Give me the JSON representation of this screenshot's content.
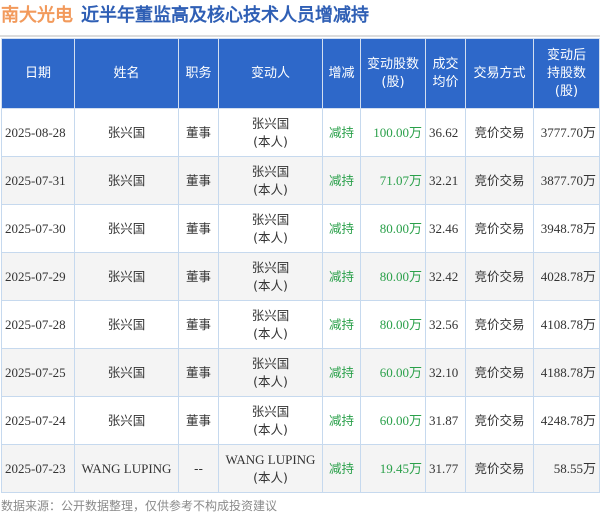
{
  "header": {
    "company": "南大光电",
    "subtitle": "近半年董监高及核心技术人员增减持"
  },
  "table": {
    "columns": [
      {
        "label_lines": [
          "日期"
        ]
      },
      {
        "label_lines": [
          "姓名"
        ]
      },
      {
        "label_lines": [
          "职务"
        ]
      },
      {
        "label_lines": [
          "变动人"
        ]
      },
      {
        "label_lines": [
          "增减"
        ]
      },
      {
        "label_lines": [
          "变动股数",
          "(股)"
        ]
      },
      {
        "label_lines": [
          "成交",
          "均价"
        ]
      },
      {
        "label_lines": [
          "交易方式"
        ]
      },
      {
        "label_lines": [
          "变动后",
          "持股数",
          "(股)"
        ]
      }
    ],
    "rows": [
      {
        "date": "2025-08-28",
        "name": "张兴国",
        "position": "董事",
        "changer": "张兴国",
        "relation": "(本人)",
        "direction": "减持",
        "shares_changed": "100.00万",
        "avg_price": "36.62",
        "method": "竞价交易",
        "shares_after": "3777.70万"
      },
      {
        "date": "2025-07-31",
        "name": "张兴国",
        "position": "董事",
        "changer": "张兴国",
        "relation": "(本人)",
        "direction": "减持",
        "shares_changed": "71.07万",
        "avg_price": "32.21",
        "method": "竞价交易",
        "shares_after": "3877.70万"
      },
      {
        "date": "2025-07-30",
        "name": "张兴国",
        "position": "董事",
        "changer": "张兴国",
        "relation": "(本人)",
        "direction": "减持",
        "shares_changed": "80.00万",
        "avg_price": "32.46",
        "method": "竞价交易",
        "shares_after": "3948.78万"
      },
      {
        "date": "2025-07-29",
        "name": "张兴国",
        "position": "董事",
        "changer": "张兴国",
        "relation": "(本人)",
        "direction": "减持",
        "shares_changed": "80.00万",
        "avg_price": "32.42",
        "method": "竞价交易",
        "shares_after": "4028.78万"
      },
      {
        "date": "2025-07-28",
        "name": "张兴国",
        "position": "董事",
        "changer": "张兴国",
        "relation": "(本人)",
        "direction": "减持",
        "shares_changed": "80.00万",
        "avg_price": "32.56",
        "method": "竞价交易",
        "shares_after": "4108.78万"
      },
      {
        "date": "2025-07-25",
        "name": "张兴国",
        "position": "董事",
        "changer": "张兴国",
        "relation": "(本人)",
        "direction": "减持",
        "shares_changed": "60.00万",
        "avg_price": "32.10",
        "method": "竞价交易",
        "shares_after": "4188.78万"
      },
      {
        "date": "2025-07-24",
        "name": "张兴国",
        "position": "董事",
        "changer": "张兴国",
        "relation": "(本人)",
        "direction": "减持",
        "shares_changed": "60.00万",
        "avg_price": "31.87",
        "method": "竞价交易",
        "shares_after": "4248.78万"
      },
      {
        "date": "2025-07-23",
        "name": "WANG LUPING",
        "position": "--",
        "changer": "WANG LUPING",
        "relation": "(本人)",
        "direction": "减持",
        "shares_changed": "19.45万",
        "avg_price": "31.77",
        "method": "竞价交易",
        "shares_after": "58.55万"
      }
    ]
  },
  "footer": {
    "note": "数据来源：公开数据整理，仅供参考不构成投资建议"
  },
  "colors": {
    "company": "#f29a5c",
    "subtitle": "#2f5fb5",
    "header_bg": "#2e68c9",
    "decrease": "#2aa04a"
  }
}
